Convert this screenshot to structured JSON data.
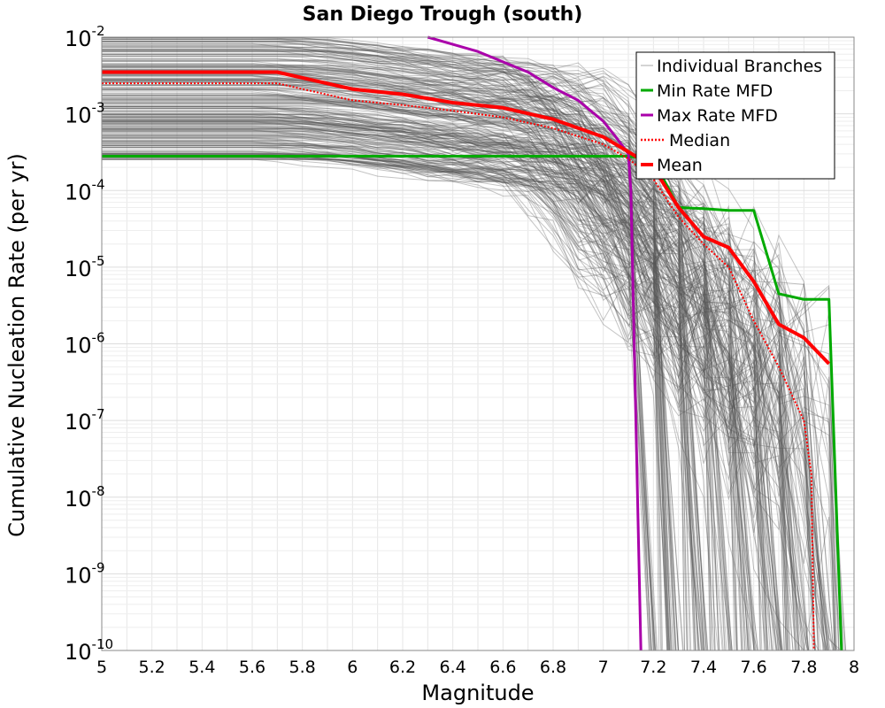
{
  "chart_data": {
    "type": "line",
    "title": "San Diego Trough (south)",
    "xlabel": "Magnitude",
    "ylabel": "Cumulative Nucleation Rate (per yr)",
    "xlim": [
      5,
      8
    ],
    "ylim": [
      1e-10,
      0.01
    ],
    "yscale": "log",
    "grid": true,
    "legend_position": "top-right",
    "x_ticks": [
      "5",
      "5.2",
      "5.4",
      "5.6",
      "5.8",
      "6",
      "6.2",
      "6.4",
      "6.6",
      "6.8",
      "7",
      "7.2",
      "7.4",
      "7.6",
      "7.8",
      "8"
    ],
    "y_ticks": [
      {
        "base": "10",
        "exp": "-10"
      },
      {
        "base": "10",
        "exp": "-9"
      },
      {
        "base": "10",
        "exp": "-8"
      },
      {
        "base": "10",
        "exp": "-7"
      },
      {
        "base": "10",
        "exp": "-6"
      },
      {
        "base": "10",
        "exp": "-5"
      },
      {
        "base": "10",
        "exp": "-4"
      },
      {
        "base": "10",
        "exp": "-3"
      },
      {
        "base": "10",
        "exp": "-2"
      }
    ],
    "series": [
      {
        "name": "Individual Branches",
        "color": "#555555",
        "style": "thin",
        "note_count": 1000
      },
      {
        "name": "Min Rate MFD",
        "color": "#00aa00",
        "style": "solid",
        "x": [
          5.0,
          7.1,
          7.2,
          7.3,
          7.4,
          7.5,
          7.6,
          7.7,
          7.8,
          7.9,
          7.95
        ],
        "y": [
          0.00028,
          0.00028,
          0.00025,
          6e-05,
          5.8e-05,
          5.5e-05,
          5.5e-05,
          4.5e-06,
          3.8e-06,
          3.8e-06,
          1e-10
        ]
      },
      {
        "name": "Max Rate MFD",
        "color": "#aa00aa",
        "style": "solid",
        "x": [
          6.3,
          6.5,
          6.7,
          6.8,
          6.9,
          7.0,
          7.05,
          7.1,
          7.11,
          7.15
        ],
        "y": [
          0.01,
          0.0065,
          0.0035,
          0.0022,
          0.0015,
          0.0008,
          0.0005,
          0.0003,
          0.0001,
          1e-10
        ]
      },
      {
        "name": "Median",
        "color": "#ff0000",
        "style": "dotted",
        "x": [
          5.0,
          5.7,
          6.0,
          6.2,
          6.4,
          6.6,
          6.8,
          7.0,
          7.1,
          7.2,
          7.3,
          7.4,
          7.5,
          7.6,
          7.7,
          7.8,
          7.83,
          7.84
        ],
        "y": [
          0.0025,
          0.0025,
          0.0015,
          0.0013,
          0.0011,
          0.0009,
          0.00065,
          0.0004,
          0.00026,
          0.00014,
          4.5e-05,
          2e-05,
          1e-05,
          2e-06,
          5e-07,
          1e-07,
          2e-08,
          1e-10
        ]
      },
      {
        "name": "Mean",
        "color": "#ff0000",
        "style": "thick",
        "x": [
          5.0,
          5.7,
          6.0,
          6.2,
          6.4,
          6.6,
          6.8,
          7.0,
          7.1,
          7.2,
          7.3,
          7.4,
          7.5,
          7.6,
          7.7,
          7.8,
          7.9
        ],
        "y": [
          0.0035,
          0.0035,
          0.0021,
          0.0018,
          0.0014,
          0.0012,
          0.00085,
          0.0005,
          0.00032,
          0.0002,
          6e-05,
          2.5e-05,
          1.8e-05,
          6.5e-06,
          1.8e-06,
          1.2e-06,
          5.5e-07
        ]
      }
    ]
  }
}
